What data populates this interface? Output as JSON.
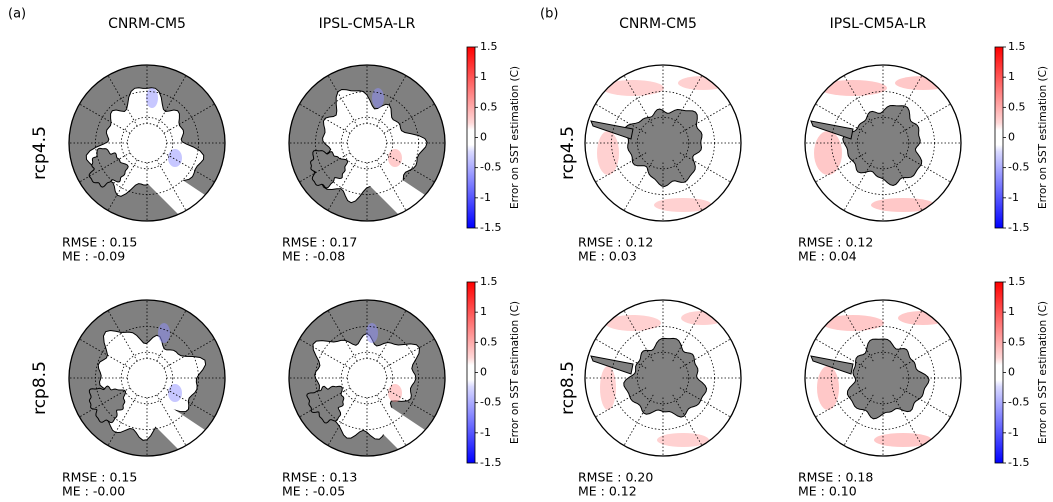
{
  "panels": [
    {
      "label": "(a)",
      "columns": [
        "CNRM-CM5",
        "IPSL-CM5A-LR"
      ],
      "rows": [
        {
          "label": "rcp4.5",
          "stats": [
            [
              "RMSE : 0.15",
              "ME : -0.09"
            ],
            [
              "RMSE : 0.17",
              "ME : -0.08"
            ]
          ]
        },
        {
          "label": "rcp8.5",
          "stats": [
            [
              "RMSE : 0.15",
              "ME : -0.00"
            ],
            [
              "RMSE : 0.13",
              "ME : -0.05"
            ]
          ]
        }
      ]
    },
    {
      "label": "(b)",
      "columns": [
        "CNRM-CM5",
        "IPSL-CM5A-LR"
      ],
      "rows": [
        {
          "label": "rcp4.5",
          "stats": [
            [
              "RMSE : 0.12",
              "ME : 0.03"
            ],
            [
              "RMSE : 0.12",
              "ME : 0.04"
            ]
          ]
        },
        {
          "label": "rcp8.5",
          "stats": [
            [
              "RMSE : 0.20",
              "ME : 0.12"
            ],
            [
              "RMSE : 0.18",
              "ME : 0.10"
            ]
          ]
        }
      ]
    }
  ],
  "colorbar": {
    "label": "Error on SST estimation (C)",
    "lim": [
      -1.5,
      1.5
    ],
    "ticks": [
      1.5,
      1,
      0.5,
      0,
      -0.5,
      -1,
      -1.5
    ]
  }
}
